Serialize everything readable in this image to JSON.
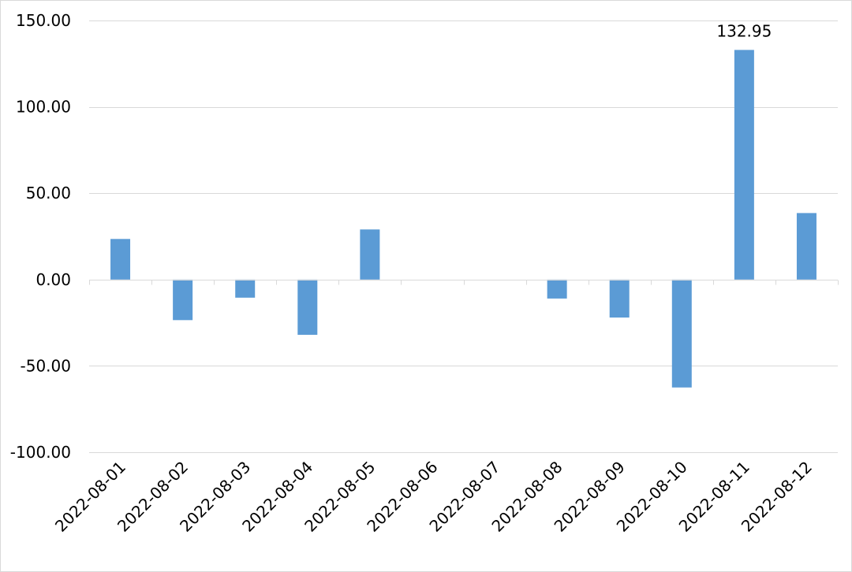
{
  "chart_data": {
    "type": "bar",
    "categories": [
      "2022-08-01",
      "2022-08-02",
      "2022-08-03",
      "2022-08-04",
      "2022-08-05",
      "2022-08-06",
      "2022-08-07",
      "2022-08-08",
      "2022-08-09",
      "2022-08-10",
      "2022-08-11",
      "2022-08-12"
    ],
    "values": [
      23.5,
      -23.5,
      -10.5,
      -32.0,
      29.0,
      0,
      0,
      -11.0,
      -22.0,
      -62.5,
      132.95,
      38.5
    ],
    "ylim": [
      -100,
      150
    ],
    "yticks": [
      150,
      100,
      50,
      0,
      -50,
      -100
    ],
    "ytick_labels": [
      "150.00",
      "100.00",
      "50.00",
      "0.00",
      "-50.00",
      "-100.00"
    ],
    "data_labels": [
      {
        "category": "2022-08-11",
        "text": "132.95"
      }
    ],
    "bar_color": "#5b9bd5",
    "grid": true,
    "grid_color": "#d9d9d9"
  }
}
